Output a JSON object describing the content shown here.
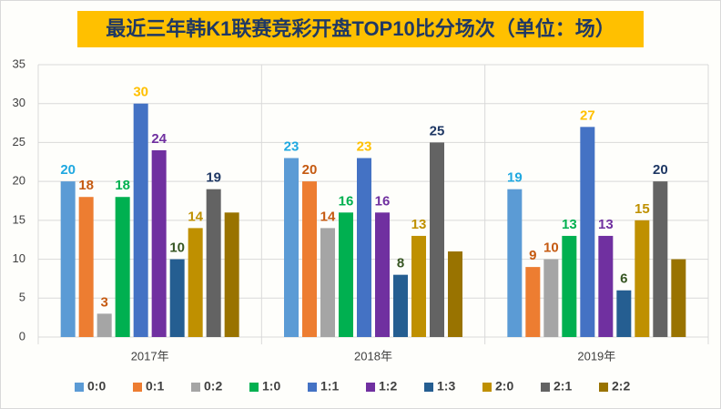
{
  "chart_data": {
    "type": "bar",
    "title": "最近三年韩K1联赛竞彩开盘TOP10比分场次（单位：场）",
    "categories": [
      "2017年",
      "2018年",
      "2019年"
    ],
    "series": [
      {
        "name": "0:0",
        "color": "#5b9bd5",
        "label_color": "#1fa8e0",
        "data_labels": true,
        "values": [
          20,
          23,
          19
        ]
      },
      {
        "name": "0:1",
        "color": "#ed7d31",
        "label_color": "#c55a11",
        "data_labels": true,
        "values": [
          18,
          20,
          9
        ]
      },
      {
        "name": "0:2",
        "color": "#a5a5a5",
        "label_color": "#c55a11",
        "data_labels": true,
        "values": [
          3,
          14,
          10
        ]
      },
      {
        "name": "1:0",
        "color": "#00b050",
        "label_color": "#00b050",
        "data_labels": true,
        "values": [
          18,
          16,
          13
        ]
      },
      {
        "name": "1:1",
        "color": "#4472c4",
        "label_color": "#ffc000",
        "data_labels": true,
        "values": [
          30,
          23,
          27
        ]
      },
      {
        "name": "1:2",
        "color": "#7030a0",
        "label_color": "#7030a0",
        "data_labels": true,
        "values": [
          24,
          16,
          13
        ]
      },
      {
        "name": "1:3",
        "color": "#255e91",
        "label_color": "#375623",
        "data_labels": true,
        "values": [
          10,
          8,
          6
        ]
      },
      {
        "name": "2:0",
        "color": "#bf9000",
        "label_color": "#bf9000",
        "data_labels": true,
        "values": [
          14,
          13,
          15
        ]
      },
      {
        "name": "2:1",
        "color": "#636363",
        "label_color": "#1f3864",
        "data_labels": true,
        "values": [
          19,
          25,
          20
        ]
      },
      {
        "name": "2:2",
        "color": "#997300",
        "label_color": "#997300",
        "data_labels": false,
        "values": [
          16,
          11,
          10
        ]
      }
    ],
    "ylim": [
      0,
      35
    ],
    "yticks": [
      0,
      5,
      10,
      15,
      20,
      25,
      30,
      35
    ],
    "grid": true,
    "legend": "bottom"
  }
}
